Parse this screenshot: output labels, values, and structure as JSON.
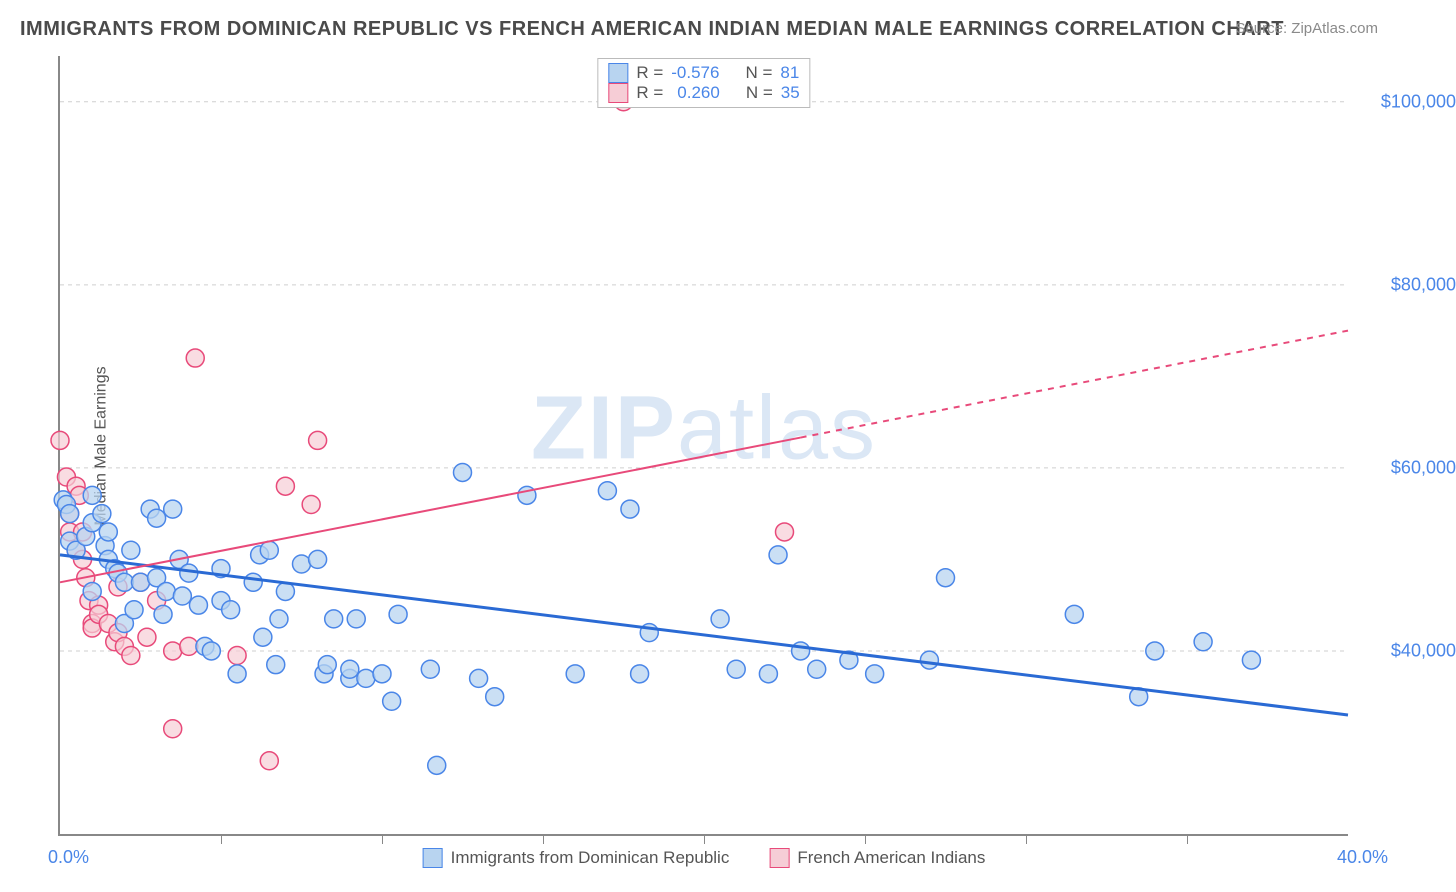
{
  "title": "IMMIGRANTS FROM DOMINICAN REPUBLIC VS FRENCH AMERICAN INDIAN MEDIAN MALE EARNINGS CORRELATION CHART",
  "source_label": "Source: ZipAtlas.com",
  "watermark": {
    "prefix": "ZIP",
    "suffix": "atlas"
  },
  "ylabel": "Median Male Earnings",
  "xaxis": {
    "min_label": "0.0%",
    "max_label": "40.0%",
    "min": 0,
    "max": 40,
    "tick_step": 5
  },
  "yaxis": {
    "min": 20000,
    "max": 105000,
    "ticks": [
      40000,
      60000,
      80000,
      100000
    ],
    "tick_labels": [
      "$40,000",
      "$60,000",
      "$80,000",
      "$100,000"
    ]
  },
  "grid_color": "#cfcfcf",
  "background_color": "#ffffff",
  "legend_top": {
    "rows": [
      {
        "swatch_fill": "#b8d4f0",
        "swatch_border": "#4a86e8",
        "r_label": "R =",
        "r_value": "-0.576",
        "n_label": "N =",
        "n_value": "81"
      },
      {
        "swatch_fill": "#f6cdd6",
        "swatch_border": "#e84a7a",
        "r_label": "R =",
        "r_value": "0.260",
        "n_label": "N =",
        "n_value": "35"
      }
    ]
  },
  "legend_bottom": [
    {
      "swatch_fill": "#b8d4f0",
      "swatch_border": "#4a86e8",
      "label": "Immigrants from Dominican Republic"
    },
    {
      "swatch_fill": "#f6cdd6",
      "swatch_border": "#e84a7a",
      "label": "French American Indians"
    }
  ],
  "series": [
    {
      "name": "dominican",
      "marker_fill": "#b8d4f0",
      "marker_stroke": "#4a86e8",
      "marker_opacity": 0.75,
      "marker_radius": 9,
      "trend_color": "#2a6ad4",
      "trend_width": 3,
      "trend": {
        "x1": 0,
        "y1": 50500,
        "x2": 40,
        "y2": 33000,
        "solid_until_x": 40
      },
      "points": [
        [
          0.1,
          56500
        ],
        [
          0.2,
          56000
        ],
        [
          0.3,
          55000
        ],
        [
          0.3,
          52000
        ],
        [
          0.5,
          51000
        ],
        [
          0.8,
          52500
        ],
        [
          1.0,
          57000
        ],
        [
          1.0,
          54000
        ],
        [
          1.0,
          46500
        ],
        [
          1.3,
          55000
        ],
        [
          1.4,
          51500
        ],
        [
          1.5,
          53000
        ],
        [
          1.5,
          50000
        ],
        [
          1.7,
          49000
        ],
        [
          1.8,
          48500
        ],
        [
          2.0,
          47500
        ],
        [
          2.0,
          43000
        ],
        [
          2.2,
          51000
        ],
        [
          2.3,
          44500
        ],
        [
          2.5,
          47500
        ],
        [
          2.8,
          55500
        ],
        [
          3.0,
          54500
        ],
        [
          3.0,
          48000
        ],
        [
          3.2,
          44000
        ],
        [
          3.3,
          46500
        ],
        [
          3.5,
          55500
        ],
        [
          3.7,
          50000
        ],
        [
          3.8,
          46000
        ],
        [
          4.0,
          48500
        ],
        [
          4.3,
          45000
        ],
        [
          4.5,
          40500
        ],
        [
          4.7,
          40000
        ],
        [
          5.0,
          49000
        ],
        [
          5.0,
          45500
        ],
        [
          5.3,
          44500
        ],
        [
          5.5,
          37500
        ],
        [
          6.0,
          47500
        ],
        [
          6.2,
          50500
        ],
        [
          6.3,
          41500
        ],
        [
          6.5,
          51000
        ],
        [
          6.7,
          38500
        ],
        [
          6.8,
          43500
        ],
        [
          7.0,
          46500
        ],
        [
          7.5,
          49500
        ],
        [
          8.0,
          50000
        ],
        [
          8.2,
          37500
        ],
        [
          8.3,
          38500
        ],
        [
          8.5,
          43500
        ],
        [
          9.0,
          37000
        ],
        [
          9.0,
          38000
        ],
        [
          9.2,
          43500
        ],
        [
          9.5,
          37000
        ],
        [
          10.0,
          37500
        ],
        [
          10.3,
          34500
        ],
        [
          10.5,
          44000
        ],
        [
          11.5,
          38000
        ],
        [
          11.7,
          27500
        ],
        [
          12.5,
          59500
        ],
        [
          13.0,
          37000
        ],
        [
          13.5,
          35000
        ],
        [
          14.5,
          57000
        ],
        [
          16.0,
          37500
        ],
        [
          17.0,
          57500
        ],
        [
          17.7,
          55500
        ],
        [
          18.0,
          37500
        ],
        [
          18.3,
          42000
        ],
        [
          20.5,
          43500
        ],
        [
          21.0,
          38000
        ],
        [
          22.0,
          37500
        ],
        [
          22.3,
          50500
        ],
        [
          23.0,
          40000
        ],
        [
          23.5,
          38000
        ],
        [
          24.5,
          39000
        ],
        [
          25.3,
          37500
        ],
        [
          27.0,
          39000
        ],
        [
          27.5,
          48000
        ],
        [
          31.5,
          44000
        ],
        [
          33.5,
          35000
        ],
        [
          34.0,
          40000
        ],
        [
          35.5,
          41000
        ],
        [
          37.0,
          39000
        ]
      ]
    },
    {
      "name": "french_american_indian",
      "marker_fill": "#f6cdd6",
      "marker_stroke": "#e84a7a",
      "marker_opacity": 0.7,
      "marker_radius": 9,
      "trend_color": "#e84a7a",
      "trend_width": 2,
      "trend": {
        "x1": 0,
        "y1": 47500,
        "x2": 40,
        "y2": 75000,
        "solid_until_x": 23
      },
      "points": [
        [
          0.0,
          63000
        ],
        [
          0.2,
          59000
        ],
        [
          0.3,
          53000
        ],
        [
          0.3,
          55000
        ],
        [
          0.5,
          58000
        ],
        [
          0.5,
          51000
        ],
        [
          0.6,
          57000
        ],
        [
          0.7,
          53000
        ],
        [
          0.7,
          50000
        ],
        [
          0.8,
          48000
        ],
        [
          0.9,
          45500
        ],
        [
          1.0,
          43000
        ],
        [
          1.0,
          42500
        ],
        [
          1.2,
          45000
        ],
        [
          1.2,
          44000
        ],
        [
          1.5,
          43000
        ],
        [
          1.7,
          41000
        ],
        [
          1.8,
          47000
        ],
        [
          1.8,
          42000
        ],
        [
          2.0,
          40500
        ],
        [
          2.2,
          39500
        ],
        [
          2.5,
          47500
        ],
        [
          2.7,
          41500
        ],
        [
          3.0,
          45500
        ],
        [
          3.5,
          40000
        ],
        [
          3.5,
          31500
        ],
        [
          4.0,
          40500
        ],
        [
          4.2,
          72000
        ],
        [
          5.5,
          39500
        ],
        [
          6.5,
          28000
        ],
        [
          7.0,
          58000
        ],
        [
          7.8,
          56000
        ],
        [
          8.0,
          63000
        ],
        [
          17.5,
          100000
        ],
        [
          22.5,
          53000
        ]
      ]
    }
  ]
}
